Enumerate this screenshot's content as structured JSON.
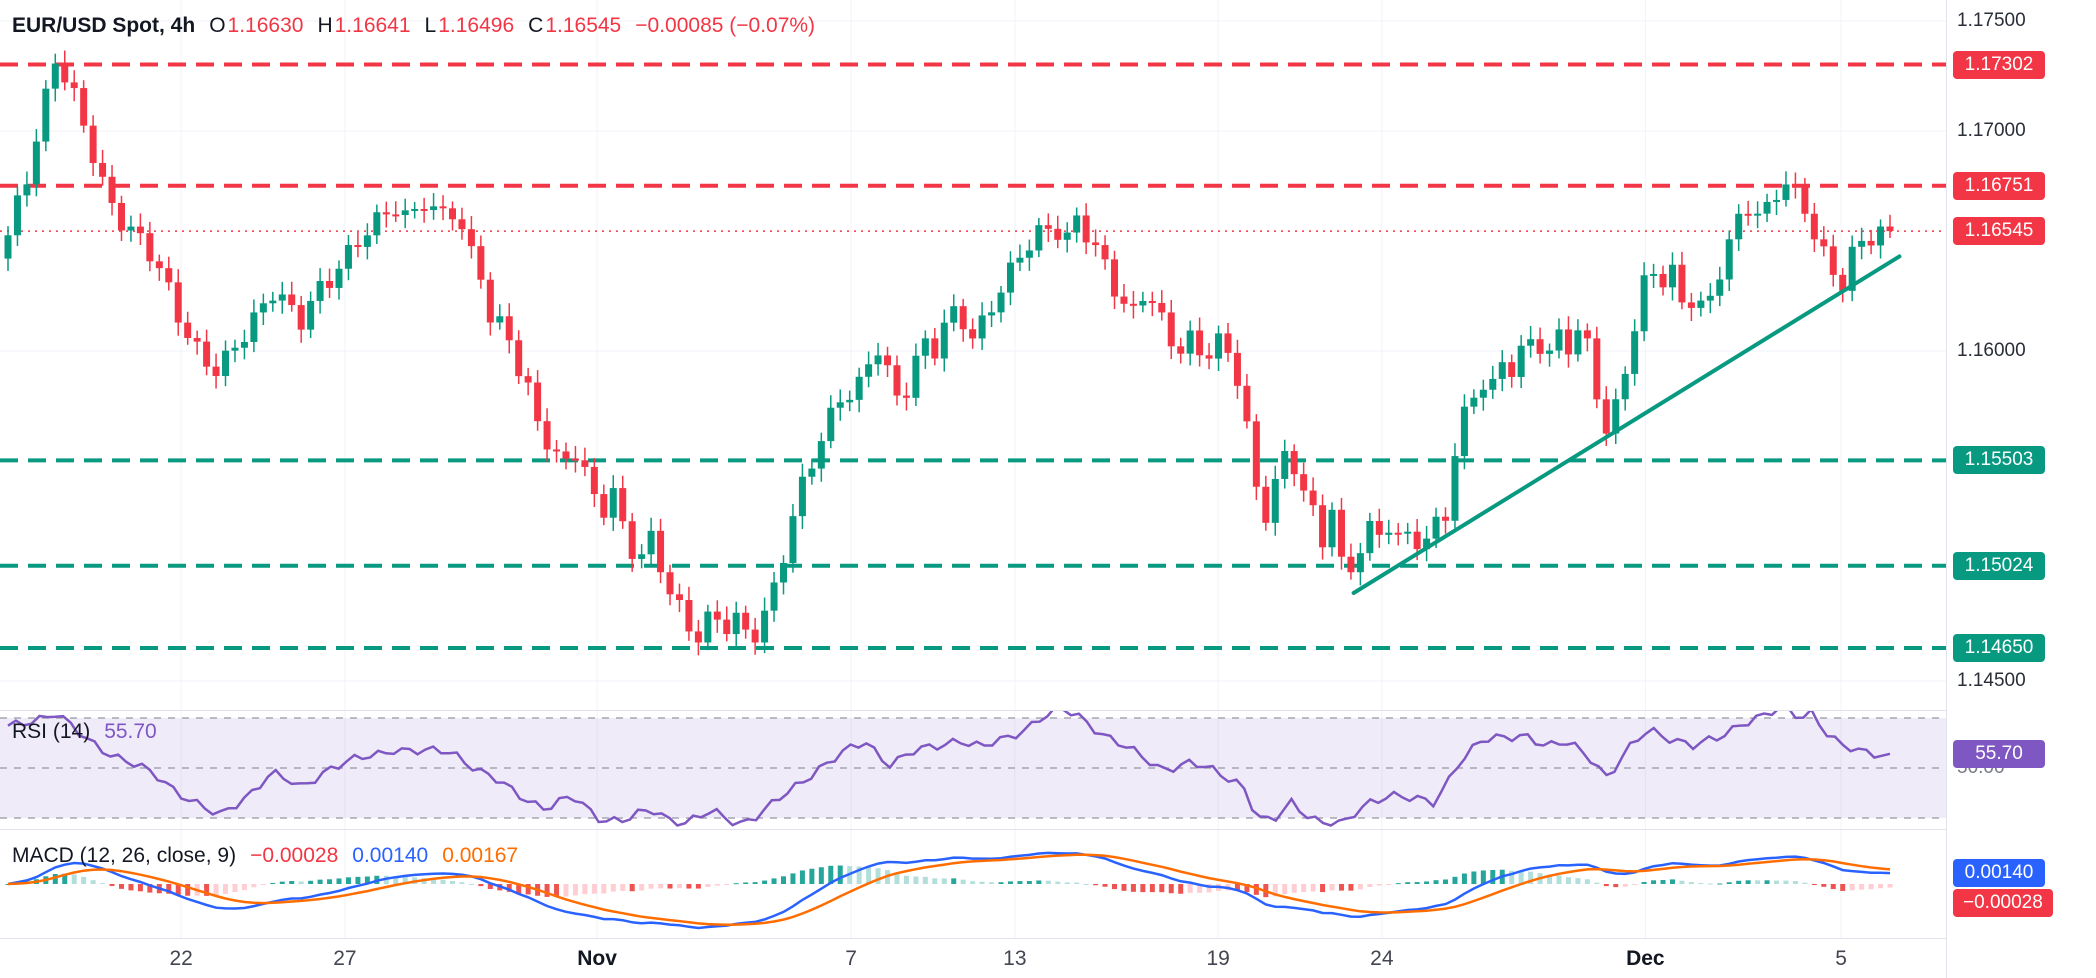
{
  "legend": {
    "symbol": "EUR/USD Spot, 4h",
    "open_label": "O",
    "open": "1.16630",
    "high_label": "H",
    "high": "1.16641",
    "low_label": "L",
    "low": "1.16496",
    "close_label": "C",
    "close": "1.16545",
    "change": "−0.00085 (−0.07%)"
  },
  "rsi_legend": {
    "title": "RSI (14)",
    "value": "55.70"
  },
  "macd_legend": {
    "title": "MACD (12, 26, close, 9)",
    "hist": "−0.00028",
    "macd": "0.00140",
    "signal": "0.00167"
  },
  "price_axis": {
    "ticks": [
      {
        "label": "1.17500",
        "price": 1.175
      },
      {
        "label": "1.17000",
        "price": 1.17
      },
      {
        "label": "1.16000",
        "price": 1.16
      },
      {
        "label": "1.14500",
        "price": 1.145
      }
    ],
    "badges": [
      {
        "label": "1.17302",
        "price": 1.17302,
        "color": "#f23645"
      },
      {
        "label": "1.16751",
        "price": 1.16751,
        "color": "#f23645"
      },
      {
        "label": "1.16545",
        "price": 1.16545,
        "color": "#f23645"
      },
      {
        "label": "1.15503",
        "price": 1.15503,
        "color": "#089981"
      },
      {
        "label": "1.15024",
        "price": 1.15024,
        "color": "#089981"
      },
      {
        "label": "1.14650",
        "price": 1.1465,
        "color": "#089981"
      }
    ]
  },
  "time_axis": {
    "labels": [
      {
        "text": "22",
        "t": 0.092,
        "major": false
      },
      {
        "text": "27",
        "t": 0.179,
        "major": false
      },
      {
        "text": "Nov",
        "t": 0.313,
        "major": true
      },
      {
        "text": "7",
        "t": 0.448,
        "major": false
      },
      {
        "text": "13",
        "t": 0.535,
        "major": false
      },
      {
        "text": "19",
        "t": 0.643,
        "major": false
      },
      {
        "text": "24",
        "t": 0.73,
        "major": false
      },
      {
        "text": "Dec",
        "t": 0.87,
        "major": true
      },
      {
        "text": "5",
        "t": 0.974,
        "major": false
      }
    ]
  },
  "colors": {
    "up": "#089981",
    "down": "#f23645",
    "trend": "#089981",
    "rsi": "#7e57c2",
    "band_fill": "rgba(126,87,194,0.12)",
    "band_line": "#9598a1",
    "macd_line": "#2962ff",
    "signal_line": "#ff6d00",
    "hist_grow_above": "#26a69a",
    "hist_fall_above": "#b2dfdb",
    "hist_grow_below": "#ffcdd2",
    "hist_fall_below": "#ef5350",
    "grid": "#f0f3fa",
    "sep": "#e0e3eb",
    "text": "#131722",
    "muted": "#787b86"
  },
  "chart_data": [
    {
      "type": "candlestick",
      "title": "EUR/USD Spot, 4h",
      "symbol": "EUR/USD Spot",
      "interval": "4h",
      "ohlc": {
        "open": 1.1663,
        "high": 1.16641,
        "low": 1.16496,
        "close": 1.16545,
        "change": -0.00085,
        "change_pct": -0.07
      },
      "levels": {
        "resistance": [
          1.17302,
          1.16751
        ],
        "current": 1.16545,
        "support": [
          1.15503,
          1.15024,
          1.1465
        ]
      },
      "trendline": {
        "from": [
          0.715,
          1.149
        ],
        "to": [
          1.005,
          1.1643
        ]
      },
      "ylim": [
        1.145,
        1.175
      ],
      "close_anchors": [
        [
          0.0,
          1.165
        ],
        [
          0.01,
          1.1678
        ],
        [
          0.018,
          1.171
        ],
        [
          0.025,
          1.1735
        ],
        [
          0.032,
          1.1722
        ],
        [
          0.042,
          1.1695
        ],
        [
          0.052,
          1.1672
        ],
        [
          0.062,
          1.166
        ],
        [
          0.072,
          1.1648
        ],
        [
          0.082,
          1.1632
        ],
        [
          0.092,
          1.1615
        ],
        [
          0.102,
          1.16
        ],
        [
          0.112,
          1.1588
        ],
        [
          0.122,
          1.1602
        ],
        [
          0.132,
          1.1618
        ],
        [
          0.14,
          1.163
        ],
        [
          0.148,
          1.162
        ],
        [
          0.155,
          1.161
        ],
        [
          0.165,
          1.1628
        ],
        [
          0.175,
          1.164
        ],
        [
          0.185,
          1.1648
        ],
        [
          0.195,
          1.1655
        ],
        [
          0.205,
          1.1668
        ],
        [
          0.212,
          1.1662
        ],
        [
          0.22,
          1.167
        ],
        [
          0.228,
          1.1658
        ],
        [
          0.236,
          1.1663
        ],
        [
          0.244,
          1.165
        ],
        [
          0.252,
          1.1638
        ],
        [
          0.258,
          1.1605
        ],
        [
          0.264,
          1.1615
        ],
        [
          0.27,
          1.159
        ],
        [
          0.278,
          1.1578
        ],
        [
          0.286,
          1.1562
        ],
        [
          0.294,
          1.1548
        ],
        [
          0.3,
          1.1556
        ],
        [
          0.308,
          1.1538
        ],
        [
          0.315,
          1.1525
        ],
        [
          0.321,
          1.154
        ],
        [
          0.328,
          1.1518
        ],
        [
          0.335,
          1.1505
        ],
        [
          0.342,
          1.1512
        ],
        [
          0.35,
          1.1492
        ],
        [
          0.358,
          1.1482
        ],
        [
          0.366,
          1.1472
        ],
        [
          0.374,
          1.148
        ],
        [
          0.381,
          1.1472
        ],
        [
          0.388,
          1.1476
        ],
        [
          0.394,
          1.147
        ],
        [
          0.4,
          1.1478
        ],
        [
          0.408,
          1.1496
        ],
        [
          0.415,
          1.1516
        ],
        [
          0.422,
          1.1536
        ],
        [
          0.43,
          1.1556
        ],
        [
          0.437,
          1.1572
        ],
        [
          0.444,
          1.1585
        ],
        [
          0.45,
          1.1578
        ],
        [
          0.456,
          1.159
        ],
        [
          0.462,
          1.16
        ],
        [
          0.468,
          1.1588
        ],
        [
          0.474,
          1.1578
        ],
        [
          0.48,
          1.1592
        ],
        [
          0.486,
          1.1605
        ],
        [
          0.492,
          1.1598
        ],
        [
          0.498,
          1.161
        ],
        [
          0.505,
          1.1618
        ],
        [
          0.512,
          1.1608
        ],
        [
          0.518,
          1.1615
        ],
        [
          0.525,
          1.1625
        ],
        [
          0.532,
          1.1632
        ],
        [
          0.54,
          1.1645
        ],
        [
          0.548,
          1.1655
        ],
        [
          0.556,
          1.166
        ],
        [
          0.562,
          1.165
        ],
        [
          0.568,
          1.1658
        ],
        [
          0.575,
          1.1648
        ],
        [
          0.582,
          1.164
        ],
        [
          0.59,
          1.1628
        ],
        [
          0.598,
          1.1618
        ],
        [
          0.605,
          1.1628
        ],
        [
          0.612,
          1.1612
        ],
        [
          0.62,
          1.16
        ],
        [
          0.628,
          1.1608
        ],
        [
          0.635,
          1.1598
        ],
        [
          0.642,
          1.1605
        ],
        [
          0.65,
          1.1592
        ],
        [
          0.656,
          1.1582
        ],
        [
          0.662,
          1.154
        ],
        [
          0.668,
          1.1528
        ],
        [
          0.674,
          1.1545
        ],
        [
          0.68,
          1.1552
        ],
        [
          0.686,
          1.154
        ],
        [
          0.692,
          1.1528
        ],
        [
          0.698,
          1.1512
        ],
        [
          0.704,
          1.1535
        ],
        [
          0.71,
          1.1495
        ],
        [
          0.716,
          1.1505
        ],
        [
          0.722,
          1.1518
        ],
        [
          0.728,
          1.1512
        ],
        [
          0.734,
          1.1522
        ],
        [
          0.74,
          1.1515
        ],
        [
          0.746,
          1.152
        ],
        [
          0.752,
          1.1512
        ],
        [
          0.758,
          1.1518
        ],
        [
          0.764,
          1.1524
        ],
        [
          0.77,
          1.1558
        ],
        [
          0.776,
          1.1578
        ],
        [
          0.782,
          1.159
        ],
        [
          0.788,
          1.1582
        ],
        [
          0.794,
          1.1595
        ],
        [
          0.8,
          1.1588
        ],
        [
          0.806,
          1.16
        ],
        [
          0.812,
          1.1608
        ],
        [
          0.818,
          1.1598
        ],
        [
          0.824,
          1.161
        ],
        [
          0.83,
          1.1602
        ],
        [
          0.836,
          1.1608
        ],
        [
          0.842,
          1.1592
        ],
        [
          0.848,
          1.156
        ],
        [
          0.854,
          1.1575
        ],
        [
          0.86,
          1.1598
        ],
        [
          0.866,
          1.1618
        ],
        [
          0.872,
          1.1638
        ],
        [
          0.878,
          1.1628
        ],
        [
          0.884,
          1.1635
        ],
        [
          0.89,
          1.1622
        ],
        [
          0.896,
          1.1628
        ],
        [
          0.902,
          1.1618
        ],
        [
          0.908,
          1.1632
        ],
        [
          0.914,
          1.1645
        ],
        [
          0.92,
          1.1658
        ],
        [
          0.926,
          1.1668
        ],
        [
          0.932,
          1.1662
        ],
        [
          0.938,
          1.1672
        ],
        [
          0.944,
          1.1678
        ],
        [
          0.95,
          1.1668
        ],
        [
          0.956,
          1.166
        ],
        [
          0.962,
          1.1648
        ],
        [
          0.968,
          1.164
        ],
        [
          0.974,
          1.1632
        ],
        [
          0.98,
          1.1645
        ],
        [
          1.0,
          1.16545
        ]
      ]
    },
    {
      "type": "line",
      "name": "RSI (14)",
      "value": 55.7,
      "bands": [
        70,
        50,
        30
      ],
      "ylim": [
        0,
        100
      ],
      "axis_badge_label": "55.70",
      "axis_tick_label": "50.00",
      "anchors": [
        [
          0.0,
          66
        ],
        [
          0.015,
          70
        ],
        [
          0.025,
          72
        ],
        [
          0.04,
          62
        ],
        [
          0.06,
          54
        ],
        [
          0.08,
          46
        ],
        [
          0.1,
          36
        ],
        [
          0.112,
          30
        ],
        [
          0.125,
          38
        ],
        [
          0.14,
          48
        ],
        [
          0.155,
          42
        ],
        [
          0.17,
          50
        ],
        [
          0.19,
          54
        ],
        [
          0.205,
          58
        ],
        [
          0.22,
          56
        ],
        [
          0.236,
          57
        ],
        [
          0.252,
          48
        ],
        [
          0.27,
          40
        ],
        [
          0.286,
          34
        ],
        [
          0.3,
          38
        ],
        [
          0.315,
          30
        ],
        [
          0.328,
          29
        ],
        [
          0.342,
          33
        ],
        [
          0.358,
          28
        ],
        [
          0.374,
          32
        ],
        [
          0.388,
          28
        ],
        [
          0.4,
          32
        ],
        [
          0.415,
          40
        ],
        [
          0.43,
          50
        ],
        [
          0.444,
          56
        ],
        [
          0.456,
          60
        ],
        [
          0.468,
          52
        ],
        [
          0.48,
          56
        ],
        [
          0.492,
          58
        ],
        [
          0.505,
          62
        ],
        [
          0.518,
          58
        ],
        [
          0.532,
          62
        ],
        [
          0.548,
          70
        ],
        [
          0.558,
          73
        ],
        [
          0.568,
          71
        ],
        [
          0.582,
          64
        ],
        [
          0.598,
          56
        ],
        [
          0.612,
          50
        ],
        [
          0.628,
          52
        ],
        [
          0.642,
          48
        ],
        [
          0.656,
          44
        ],
        [
          0.664,
          30
        ],
        [
          0.672,
          28
        ],
        [
          0.682,
          36
        ],
        [
          0.692,
          31
        ],
        [
          0.7,
          28
        ],
        [
          0.71,
          27
        ],
        [
          0.722,
          36
        ],
        [
          0.734,
          40
        ],
        [
          0.746,
          37
        ],
        [
          0.758,
          36
        ],
        [
          0.77,
          52
        ],
        [
          0.782,
          60
        ],
        [
          0.794,
          62
        ],
        [
          0.806,
          64
        ],
        [
          0.818,
          58
        ],
        [
          0.83,
          60
        ],
        [
          0.842,
          54
        ],
        [
          0.85,
          46
        ],
        [
          0.86,
          56
        ],
        [
          0.872,
          66
        ],
        [
          0.884,
          62
        ],
        [
          0.896,
          58
        ],
        [
          0.908,
          62
        ],
        [
          0.92,
          68
        ],
        [
          0.932,
          70
        ],
        [
          0.944,
          74
        ],
        [
          0.952,
          71
        ],
        [
          0.958,
          73
        ],
        [
          0.966,
          64
        ],
        [
          0.974,
          58
        ],
        [
          1.0,
          55.7
        ]
      ]
    },
    {
      "type": "macd",
      "name": "MACD (12, 26, close, 9)",
      "params": {
        "fast": 12,
        "slow": 26,
        "source": "close",
        "signal": 9
      },
      "values": {
        "histogram": -0.00028,
        "macd": 0.0014,
        "signal": 0.00167
      },
      "axis_badges": [
        {
          "label": "0.00140",
          "color": "#2962ff"
        },
        {
          "label": "−0.00028",
          "color": "#f23645"
        }
      ]
    }
  ]
}
